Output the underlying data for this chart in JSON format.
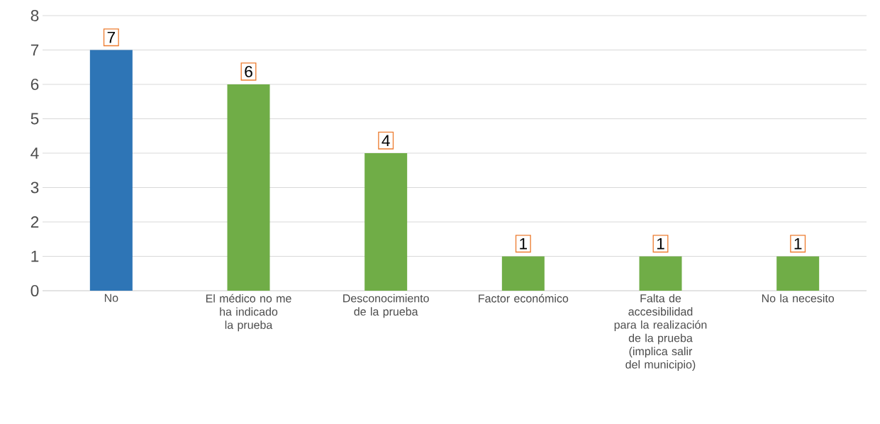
{
  "chart_data": {
    "type": "bar",
    "categories": [
      "No",
      "El médico no me ha indicado la prueba",
      "Desconocimiento de la prueba",
      "Factor económico",
      "Falta de accesibilidad para la realización de la prueba (implica salir del municipio)",
      "No la necesito"
    ],
    "values": [
      7,
      6,
      4,
      1,
      1,
      1
    ],
    "colors": [
      "#2e75b6",
      "#70ad47",
      "#70ad47",
      "#70ad47",
      "#70ad47",
      "#70ad47"
    ],
    "ylim": [
      0,
      8
    ],
    "yticks": [
      0,
      1,
      2,
      3,
      4,
      5,
      6,
      7,
      8
    ],
    "grid": "y",
    "data_labels": true
  }
}
